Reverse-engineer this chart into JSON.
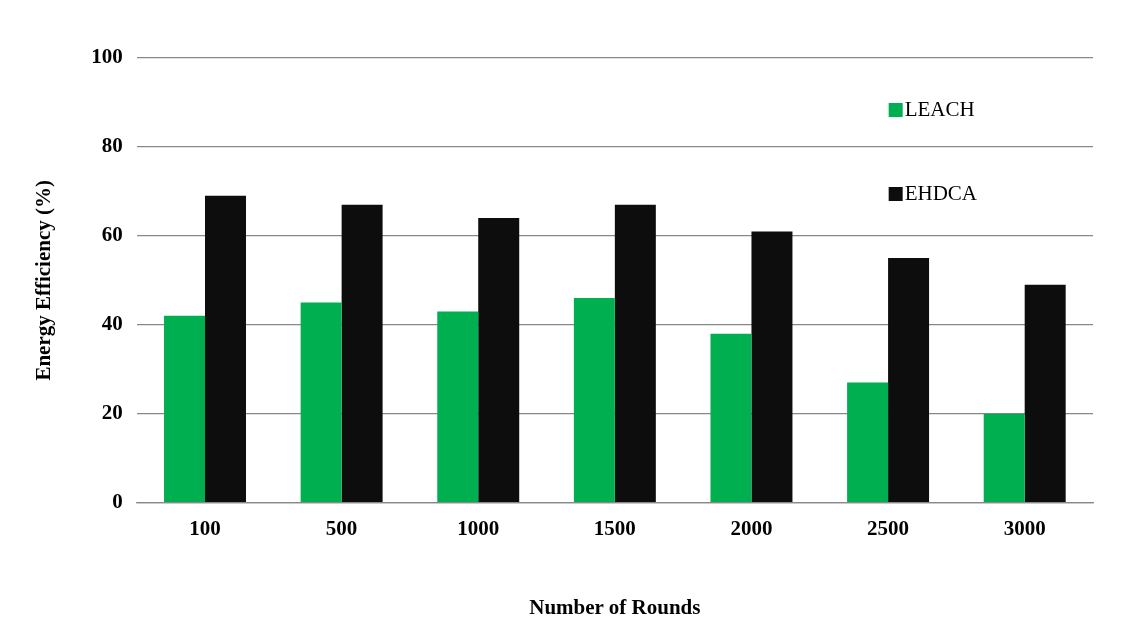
{
  "chart_data": {
    "type": "bar",
    "xlabel": "Number of Rounds",
    "ylabel": "Energy Efficiency (%)",
    "categories": [
      "100",
      "500",
      "1000",
      "1500",
      "2000",
      "2500",
      "3000"
    ],
    "series": [
      {
        "name": "LEACH",
        "color": "#00b050",
        "values": [
          42,
          45,
          43,
          46,
          38,
          27,
          20
        ]
      },
      {
        "name": "EHDCA",
        "color": "#0d0d0d",
        "values": [
          69,
          67,
          64,
          67,
          61,
          55,
          49
        ]
      }
    ],
    "ylim": [
      0,
      100
    ],
    "yticks": [
      0,
      20,
      40,
      60,
      80,
      100
    ],
    "grid": "y",
    "legend": "top right"
  }
}
